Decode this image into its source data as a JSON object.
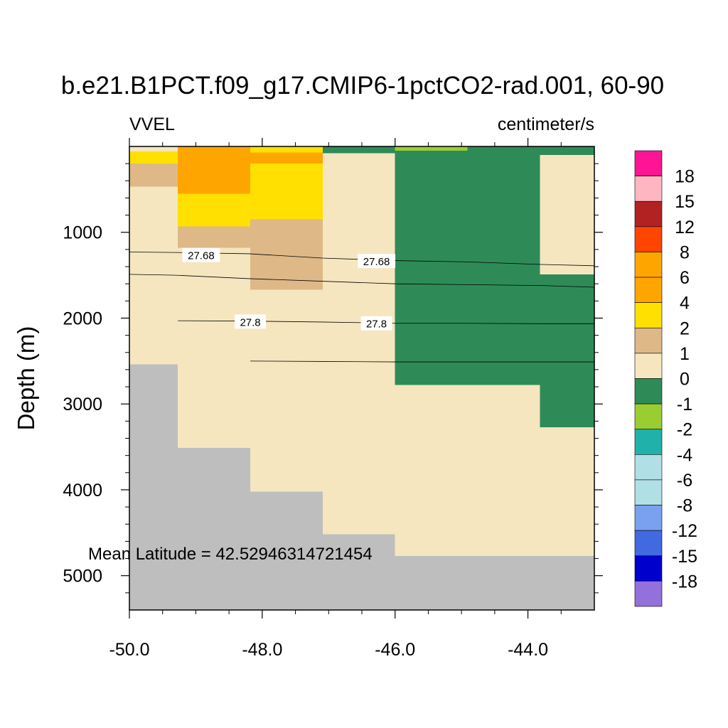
{
  "chart_data": {
    "type": "heatmap",
    "title": "b.e21.B1PCT.f09_g17.CMIP6-1pctCO2-rad.001, 60-90",
    "left_label": "VVEL",
    "right_label": "centimeter/s",
    "ylabel": "Depth (m)",
    "xlabel": "",
    "annotation": "Mean Latitude = 42.52946314721454",
    "xlim": [
      -50.0,
      -43.0
    ],
    "ylim": [
      0,
      5400
    ],
    "y_inverted": true,
    "x_ticks": [
      -50.0,
      -48.0,
      -46.0,
      -44.0
    ],
    "x_tick_labels": [
      "-50.0",
      "-48.0",
      "-46.0",
      "-44.0"
    ],
    "y_ticks": [
      1000,
      2000,
      3000,
      4000,
      5000
    ],
    "y_tick_labels": [
      "1000",
      "2000",
      "3000",
      "4000",
      "5000"
    ],
    "colorbar": {
      "labels": [
        "18",
        "15",
        "12",
        "8",
        "6",
        "4",
        "2",
        "1",
        "0",
        "-1",
        "-2",
        "-4",
        "-6",
        "-8",
        "-12",
        "-15",
        "-18"
      ],
      "colors": [
        "#ff1493",
        "#ffb6c1",
        "#b22222",
        "#ff4500",
        "#ffa500",
        "#ffa500",
        "#ffe000",
        "#deb887",
        "#f5e6c0",
        "#2e8b57",
        "#9acd32",
        "#20b2aa",
        "#b0e0e6",
        "#b0e0e6",
        "#7aa0f0",
        "#4169e1",
        "#0000cd",
        "#9370db"
      ]
    },
    "land_color": "#bebebe",
    "cells": [
      {
        "x": [
          -50.0,
          -49.27
        ],
        "y": [
          0,
          60
        ],
        "value": 1
      },
      {
        "x": [
          -50.0,
          -49.27
        ],
        "y": [
          60,
          200
        ],
        "value": 3
      },
      {
        "x": [
          -50.0,
          -49.27
        ],
        "y": [
          200,
          470
        ],
        "value": 1.5
      },
      {
        "x": [
          -50.0,
          -49.27
        ],
        "y": [
          470,
          2540
        ],
        "value": 0.5
      },
      {
        "x": [
          -50.0,
          -49.27
        ],
        "y": [
          2540,
          5400
        ],
        "value": "land"
      },
      {
        "x": [
          -49.27,
          -48.18
        ],
        "y": [
          0,
          550
        ],
        "value": 5
      },
      {
        "x": [
          -49.27,
          -48.18
        ],
        "y": [
          550,
          930
        ],
        "value": 3
      },
      {
        "x": [
          -49.27,
          -48.18
        ],
        "y": [
          930,
          1180
        ],
        "value": 1.5
      },
      {
        "x": [
          -49.27,
          -48.18
        ],
        "y": [
          1180,
          3510
        ],
        "value": 0.5
      },
      {
        "x": [
          -49.27,
          -48.18
        ],
        "y": [
          3510,
          5400
        ],
        "value": "land"
      },
      {
        "x": [
          -48.18,
          -47.09
        ],
        "y": [
          0,
          70
        ],
        "value": 3
      },
      {
        "x": [
          -48.18,
          -47.09
        ],
        "y": [
          70,
          200
        ],
        "value": 5
      },
      {
        "x": [
          -48.18,
          -47.09
        ],
        "y": [
          200,
          850
        ],
        "value": 3
      },
      {
        "x": [
          -48.18,
          -47.09
        ],
        "y": [
          850,
          1670
        ],
        "value": 1.5
      },
      {
        "x": [
          -48.18,
          -47.09
        ],
        "y": [
          1670,
          4020
        ],
        "value": 0.5
      },
      {
        "x": [
          -48.18,
          -47.09
        ],
        "y": [
          4020,
          5400
        ],
        "value": "land"
      },
      {
        "x": [
          -47.09,
          -46.0
        ],
        "y": [
          0,
          80
        ],
        "value": -0.5
      },
      {
        "x": [
          -47.09,
          -46.0
        ],
        "y": [
          80,
          4520
        ],
        "value": 0.5
      },
      {
        "x": [
          -47.09,
          -46.0
        ],
        "y": [
          4520,
          5400
        ],
        "value": "land"
      },
      {
        "x": [
          -46.0,
          -44.91
        ],
        "y": [
          0,
          50
        ],
        "value": -1.5
      },
      {
        "x": [
          -46.0,
          -44.91
        ],
        "y": [
          50,
          2780
        ],
        "value": -0.5
      },
      {
        "x": [
          -46.0,
          -44.91
        ],
        "y": [
          2780,
          4770
        ],
        "value": 0.5
      },
      {
        "x": [
          -46.0,
          -44.91
        ],
        "y": [
          4770,
          5400
        ],
        "value": "land"
      },
      {
        "x": [
          -44.91,
          -43.82
        ],
        "y": [
          0,
          2780
        ],
        "value": -0.5
      },
      {
        "x": [
          -44.91,
          -43.82
        ],
        "y": [
          2780,
          4770
        ],
        "value": 0.5
      },
      {
        "x": [
          -44.91,
          -43.82
        ],
        "y": [
          4770,
          5400
        ],
        "value": "land"
      },
      {
        "x": [
          -43.82,
          -43.0
        ],
        "y": [
          0,
          100
        ],
        "value": -0.5
      },
      {
        "x": [
          -43.82,
          -43.0
        ],
        "y": [
          100,
          1490
        ],
        "value": 0.5
      },
      {
        "x": [
          -43.82,
          -43.0
        ],
        "y": [
          1490,
          3270
        ],
        "value": -0.5
      },
      {
        "x": [
          -43.82,
          -43.0
        ],
        "y": [
          3270,
          4770
        ],
        "value": 0.5
      },
      {
        "x": [
          -43.82,
          -43.0
        ],
        "y": [
          4770,
          5400
        ],
        "value": "land"
      }
    ],
    "contours": [
      {
        "level": "27.68",
        "x": [
          -50.0,
          -49.3,
          -48.2,
          -47.1,
          -46.0,
          -44.9,
          -43.8,
          -43.0
        ],
        "y": [
          1230,
          1235,
          1250,
          1300,
          1330,
          1345,
          1375,
          1390
        ],
        "labels": [
          {
            "x": -48.92,
            "y": 1265
          },
          {
            "x": -46.28,
            "y": 1335
          }
        ]
      },
      {
        "level": "",
        "x": [
          -50.0,
          -49.3,
          -48.2,
          -47.1,
          -46.0,
          -44.9,
          -43.8,
          -43.0
        ],
        "y": [
          1490,
          1500,
          1540,
          1570,
          1600,
          1610,
          1620,
          1640
        ],
        "labels": []
      },
      {
        "level": "27.8",
        "x": [
          -49.27,
          -48.2,
          -47.1,
          -46.0,
          -44.9,
          -43.8,
          -43.0
        ],
        "y": [
          2030,
          2035,
          2045,
          2060,
          2060,
          2065,
          2065
        ],
        "labels": [
          {
            "x": -48.18,
            "y": 2040
          },
          {
            "x": -46.28,
            "y": 2060
          }
        ]
      },
      {
        "level": "",
        "x": [
          -48.18,
          -47.1,
          -46.0,
          -44.9,
          -43.8,
          -43.0
        ],
        "y": [
          2500,
          2505,
          2510,
          2510,
          2510,
          2510
        ],
        "labels": []
      }
    ]
  }
}
